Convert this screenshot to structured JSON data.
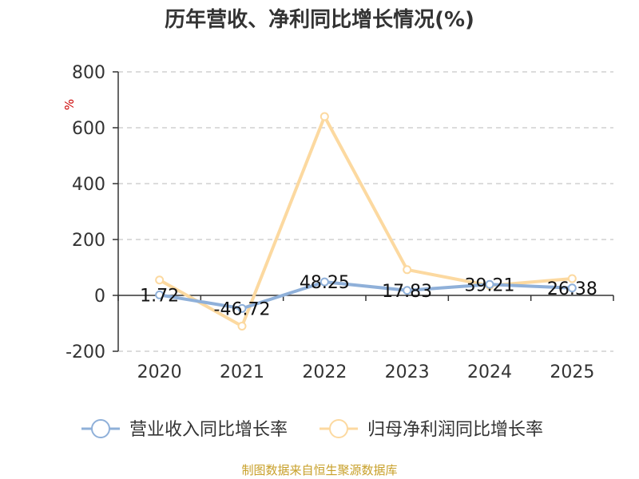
{
  "chart_data": {
    "type": "line",
    "title": "历年营收、净利同比增长情况(%)",
    "ylabel": "%",
    "xlabel": "",
    "ylim": [
      -200,
      800
    ],
    "y_ticks": [
      -200,
      0,
      200,
      400,
      600,
      800
    ],
    "categories": [
      "2020",
      "2021",
      "2022",
      "2023",
      "2024",
      "2025"
    ],
    "grid": true,
    "legend_position": "bottom",
    "series": [
      {
        "name": "营业收入同比增长率",
        "values": [
          1.72,
          -46.72,
          48.25,
          17.83,
          39.21,
          26.38
        ],
        "labels": [
          "1.72",
          "-46.72",
          "48.25",
          "17.83",
          "39.21",
          "26.38"
        ],
        "color": "#8fb0d9"
      },
      {
        "name": "归母净利润同比增长率",
        "values": [
          55,
          -110,
          640,
          92,
          35,
          60
        ],
        "color": "#fcd9a0"
      }
    ]
  },
  "source": "制图数据来自恒生聚源数据库"
}
